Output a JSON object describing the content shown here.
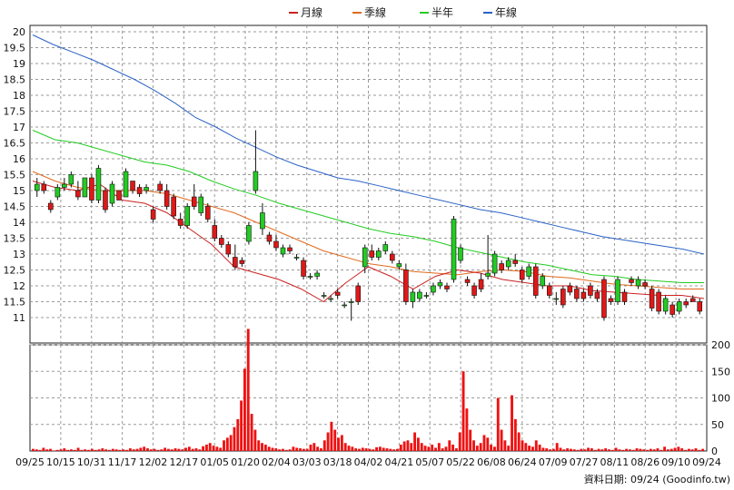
{
  "chart_data": {
    "type": "candlestick",
    "legend": [
      {
        "label": "月線",
        "color": "#cc2222"
      },
      {
        "label": "季線",
        "color": "#e06a1c"
      },
      {
        "label": "半年",
        "color": "#22cc22"
      },
      {
        "label": "年線",
        "color": "#2a62c6"
      }
    ],
    "price_axis": {
      "min": 10.2,
      "max": 20.2,
      "ticks": [
        11,
        11.5,
        12,
        12.5,
        13,
        13.5,
        14,
        14.5,
        15,
        15.5,
        16,
        16.5,
        17,
        17.5,
        18,
        18.5,
        19,
        19.5,
        20
      ]
    },
    "volume_axis": {
      "min": 0,
      "max": 200,
      "ticks": [
        0,
        50,
        100,
        150,
        200
      ]
    },
    "x_labels": [
      "09/25",
      "10/15",
      "10/31",
      "11/17",
      "12/02",
      "12/17",
      "01/05",
      "01/20",
      "02/04",
      "03/03",
      "03/18",
      "04/02",
      "04/21",
      "05/07",
      "05/22",
      "06/08",
      "06/24",
      "07/09",
      "07/27",
      "08/11",
      "08/26",
      "09/10",
      "09/24"
    ],
    "source_text": "資料日期: 09/24 (Goodinfo.tw)",
    "grid": true,
    "ma_year": [
      19.9,
      19.6,
      19.35,
      19.1,
      18.8,
      18.5,
      18.15,
      17.75,
      17.3,
      17.0,
      16.65,
      16.35,
      16.05,
      15.8,
      15.6,
      15.4,
      15.3,
      15.15,
      15.0,
      14.85,
      14.7,
      14.55,
      14.4,
      14.3,
      14.15,
      14.0,
      13.85,
      13.7,
      13.55,
      13.45,
      13.35,
      13.25,
      13.15,
      13.0
    ],
    "ma_half": [
      16.9,
      16.6,
      16.5,
      16.3,
      16.1,
      15.9,
      15.8,
      15.6,
      15.3,
      15.05,
      14.85,
      14.6,
      14.4,
      14.2,
      14.0,
      13.8,
      13.65,
      13.55,
      13.4,
      13.2,
      13.05,
      12.9,
      12.75,
      12.65,
      12.5,
      12.35,
      12.3,
      12.2,
      12.15,
      12.1,
      12.1
    ],
    "ma_quarter": [
      15.6,
      15.3,
      15.1,
      15.0,
      15.0,
      15.0,
      14.9,
      14.7,
      14.5,
      14.3,
      14.0,
      13.7,
      13.4,
      13.1,
      12.9,
      12.7,
      12.6,
      12.45,
      12.4,
      12.35,
      12.45,
      12.5,
      12.45,
      12.3,
      12.25,
      12.15,
      12.05,
      12.0,
      11.95,
      11.9,
      11.9
    ],
    "ma_month": [
      15.3,
      15.1,
      15.0,
      15.2,
      14.7,
      14.6,
      14.3,
      13.8,
      13.3,
      12.6,
      12.4,
      12.2,
      11.9,
      11.5,
      12.1,
      12.6,
      12.3,
      11.9,
      12.3,
      12.5,
      12.4,
      12.2,
      12.1,
      12.0,
      12.0,
      11.85,
      11.8,
      11.75,
      11.7,
      11.7,
      11.6
    ],
    "candles": [
      {
        "o": 15.0,
        "h": 15.4,
        "l": 14.8,
        "c": 15.2
      },
      {
        "o": 15.2,
        "h": 15.3,
        "l": 14.9,
        "c": 15.0
      },
      {
        "o": 14.6,
        "h": 14.7,
        "l": 14.3,
        "c": 14.4
      },
      {
        "o": 14.8,
        "h": 15.2,
        "l": 14.7,
        "c": 15.1
      },
      {
        "o": 15.1,
        "h": 15.4,
        "l": 15.0,
        "c": 15.2
      },
      {
        "o": 15.2,
        "h": 15.6,
        "l": 15.1,
        "c": 15.5
      },
      {
        "o": 15.0,
        "h": 15.3,
        "l": 14.7,
        "c": 14.8
      },
      {
        "o": 14.8,
        "h": 15.4,
        "l": 14.8,
        "c": 15.4
      },
      {
        "o": 15.4,
        "h": 15.5,
        "l": 14.6,
        "c": 14.7
      },
      {
        "o": 14.7,
        "h": 15.8,
        "l": 14.6,
        "c": 15.7
      },
      {
        "o": 15.0,
        "h": 15.1,
        "l": 14.3,
        "c": 14.4
      },
      {
        "o": 14.6,
        "h": 15.3,
        "l": 14.5,
        "c": 15.2
      },
      {
        "o": 15.0,
        "h": 15.0,
        "l": 14.7,
        "c": 14.7
      },
      {
        "o": 14.8,
        "h": 15.7,
        "l": 14.8,
        "c": 15.6
      },
      {
        "o": 15.3,
        "h": 15.3,
        "l": 14.9,
        "c": 15.0
      },
      {
        "o": 15.1,
        "h": 15.2,
        "l": 14.8,
        "c": 14.9
      },
      {
        "o": 15.0,
        "h": 15.2,
        "l": 14.9,
        "c": 15.1
      },
      {
        "o": 14.4,
        "h": 14.5,
        "l": 14.0,
        "c": 14.1
      },
      {
        "o": 15.2,
        "h": 15.3,
        "l": 14.9,
        "c": 15.0
      },
      {
        "o": 15.0,
        "h": 15.2,
        "l": 14.4,
        "c": 14.5
      },
      {
        "o": 14.8,
        "h": 14.9,
        "l": 14.1,
        "c": 14.2
      },
      {
        "o": 14.1,
        "h": 14.3,
        "l": 13.8,
        "c": 13.9
      },
      {
        "o": 13.9,
        "h": 14.6,
        "l": 13.8,
        "c": 14.5
      },
      {
        "o": 14.8,
        "h": 15.2,
        "l": 14.4,
        "c": 14.5
      },
      {
        "o": 14.3,
        "h": 14.9,
        "l": 14.2,
        "c": 14.8
      },
      {
        "o": 14.5,
        "h": 14.6,
        "l": 14.0,
        "c": 14.1
      },
      {
        "o": 13.9,
        "h": 14.1,
        "l": 13.4,
        "c": 13.5
      },
      {
        "o": 13.5,
        "h": 13.6,
        "l": 13.2,
        "c": 13.3
      },
      {
        "o": 13.3,
        "h": 13.4,
        "l": 12.9,
        "c": 13.0
      },
      {
        "o": 12.9,
        "h": 13.3,
        "l": 12.5,
        "c": 12.6
      },
      {
        "o": 12.8,
        "h": 12.9,
        "l": 12.6,
        "c": 12.7
      },
      {
        "o": 13.4,
        "h": 14.0,
        "l": 13.3,
        "c": 13.9
      },
      {
        "o": 15.0,
        "h": 16.9,
        "l": 14.9,
        "c": 15.6
      },
      {
        "o": 13.8,
        "h": 14.6,
        "l": 13.6,
        "c": 14.3
      },
      {
        "o": 13.6,
        "h": 13.7,
        "l": 13.3,
        "c": 13.4
      },
      {
        "o": 13.4,
        "h": 13.6,
        "l": 13.1,
        "c": 13.2
      },
      {
        "o": 13.0,
        "h": 13.3,
        "l": 12.9,
        "c": 13.2
      },
      {
        "o": 13.2,
        "h": 13.3,
        "l": 13.0,
        "c": 13.1
      },
      {
        "o": 12.9,
        "h": 13.0,
        "l": 12.8,
        "c": 12.9
      },
      {
        "o": 12.8,
        "h": 12.9,
        "l": 12.2,
        "c": 12.3
      },
      {
        "o": 12.3,
        "h": 12.4,
        "l": 12.2,
        "c": 12.3
      },
      {
        "o": 12.3,
        "h": 12.5,
        "l": 12.2,
        "c": 12.4
      },
      {
        "o": 11.7,
        "h": 11.8,
        "l": 11.6,
        "c": 11.7
      },
      {
        "o": 11.6,
        "h": 11.7,
        "l": 11.5,
        "c": 11.6
      },
      {
        "o": 11.8,
        "h": 11.9,
        "l": 11.6,
        "c": 11.7
      },
      {
        "o": 11.4,
        "h": 11.5,
        "l": 11.3,
        "c": 11.4
      },
      {
        "o": 11.5,
        "h": 11.6,
        "l": 10.9,
        "c": 11.5
      },
      {
        "o": 12.0,
        "h": 12.1,
        "l": 11.4,
        "c": 11.5
      },
      {
        "o": 12.6,
        "h": 13.3,
        "l": 12.4,
        "c": 13.2
      },
      {
        "o": 13.1,
        "h": 13.3,
        "l": 12.8,
        "c": 12.9
      },
      {
        "o": 12.9,
        "h": 13.2,
        "l": 12.8,
        "c": 13.1
      },
      {
        "o": 13.1,
        "h": 13.4,
        "l": 13.0,
        "c": 13.3
      },
      {
        "o": 13.0,
        "h": 13.1,
        "l": 12.7,
        "c": 12.8
      },
      {
        "o": 12.6,
        "h": 12.8,
        "l": 12.5,
        "c": 12.7
      },
      {
        "o": 12.5,
        "h": 12.7,
        "l": 11.4,
        "c": 11.5
      },
      {
        "o": 11.5,
        "h": 11.9,
        "l": 11.3,
        "c": 11.8
      },
      {
        "o": 11.6,
        "h": 11.9,
        "l": 11.5,
        "c": 11.8
      },
      {
        "o": 11.7,
        "h": 11.8,
        "l": 11.6,
        "c": 11.7
      },
      {
        "o": 11.8,
        "h": 12.1,
        "l": 11.7,
        "c": 12.0
      },
      {
        "o": 12.0,
        "h": 12.2,
        "l": 11.9,
        "c": 12.1
      },
      {
        "o": 12.0,
        "h": 12.1,
        "l": 11.8,
        "c": 11.9
      },
      {
        "o": 12.2,
        "h": 14.2,
        "l": 12.1,
        "c": 14.1
      },
      {
        "o": 12.8,
        "h": 13.3,
        "l": 12.7,
        "c": 13.2
      },
      {
        "o": 12.2,
        "h": 12.3,
        "l": 12.0,
        "c": 12.1
      },
      {
        "o": 12.0,
        "h": 12.1,
        "l": 11.6,
        "c": 11.7
      },
      {
        "o": 12.2,
        "h": 12.4,
        "l": 11.8,
        "c": 11.9
      },
      {
        "o": 12.3,
        "h": 13.6,
        "l": 12.2,
        "c": 12.4
      },
      {
        "o": 12.4,
        "h": 13.1,
        "l": 12.3,
        "c": 13.0
      },
      {
        "o": 12.7,
        "h": 12.8,
        "l": 12.4,
        "c": 12.5
      },
      {
        "o": 12.6,
        "h": 12.9,
        "l": 12.5,
        "c": 12.8
      },
      {
        "o": 12.8,
        "h": 13.0,
        "l": 12.6,
        "c": 12.7
      },
      {
        "o": 12.5,
        "h": 12.6,
        "l": 12.1,
        "c": 12.2
      },
      {
        "o": 12.3,
        "h": 12.7,
        "l": 12.2,
        "c": 12.6
      },
      {
        "o": 12.6,
        "h": 12.7,
        "l": 11.6,
        "c": 11.7
      },
      {
        "o": 12.0,
        "h": 12.4,
        "l": 11.9,
        "c": 12.3
      },
      {
        "o": 12.0,
        "h": 12.1,
        "l": 11.6,
        "c": 11.7
      },
      {
        "o": 11.6,
        "h": 11.8,
        "l": 11.4,
        "c": 11.6
      },
      {
        "o": 11.9,
        "h": 12.0,
        "l": 11.3,
        "c": 11.4
      },
      {
        "o": 12.0,
        "h": 12.1,
        "l": 11.7,
        "c": 11.8
      },
      {
        "o": 11.9,
        "h": 12.0,
        "l": 11.5,
        "c": 11.6
      },
      {
        "o": 11.8,
        "h": 11.9,
        "l": 11.5,
        "c": 11.6
      },
      {
        "o": 12.0,
        "h": 12.1,
        "l": 11.6,
        "c": 11.7
      },
      {
        "o": 11.8,
        "h": 11.9,
        "l": 11.5,
        "c": 11.6
      },
      {
        "o": 12.2,
        "h": 12.3,
        "l": 10.9,
        "c": 11.0
      },
      {
        "o": 11.6,
        "h": 11.7,
        "l": 11.4,
        "c": 11.5
      },
      {
        "o": 11.5,
        "h": 12.3,
        "l": 11.4,
        "c": 12.2
      },
      {
        "o": 11.8,
        "h": 11.9,
        "l": 11.4,
        "c": 11.5
      },
      {
        "o": 12.2,
        "h": 12.3,
        "l": 12.0,
        "c": 12.1
      },
      {
        "o": 12.0,
        "h": 12.3,
        "l": 11.9,
        "c": 12.2
      },
      {
        "o": 12.1,
        "h": 12.2,
        "l": 11.9,
        "c": 12.0
      },
      {
        "o": 11.9,
        "h": 12.0,
        "l": 11.2,
        "c": 11.3
      },
      {
        "o": 11.8,
        "h": 11.9,
        "l": 11.1,
        "c": 11.2
      },
      {
        "o": 11.2,
        "h": 11.7,
        "l": 11.1,
        "c": 11.6
      },
      {
        "o": 11.4,
        "h": 11.5,
        "l": 11.0,
        "c": 11.1
      },
      {
        "o": 11.2,
        "h": 11.6,
        "l": 11.1,
        "c": 11.5
      },
      {
        "o": 11.5,
        "h": 11.6,
        "l": 11.3,
        "c": 11.4
      },
      {
        "o": 11.6,
        "h": 11.7,
        "l": 11.5,
        "c": 11.5
      },
      {
        "o": 11.5,
        "h": 11.6,
        "l": 11.1,
        "c": 11.2
      }
    ],
    "volumes": [
      4,
      3,
      2,
      6,
      3,
      4,
      1,
      2,
      3,
      5,
      2,
      3,
      2,
      6,
      2,
      3,
      2,
      4,
      2,
      3,
      5,
      3,
      2,
      4,
      3,
      2,
      3,
      2,
      5,
      3,
      4,
      6,
      8,
      5,
      3,
      4,
      2,
      3,
      6,
      4,
      3,
      5,
      4,
      3,
      6,
      8,
      4,
      5,
      3,
      9,
      12,
      15,
      10,
      8,
      6,
      20,
      25,
      30,
      45,
      60,
      95,
      155,
      230,
      70,
      40,
      20,
      15,
      12,
      8,
      6,
      5,
      3,
      4,
      2,
      3,
      8,
      6,
      5,
      4,
      4,
      12,
      15,
      8,
      5,
      20,
      35,
      55,
      40,
      25,
      30,
      15,
      10,
      8,
      5,
      4,
      6,
      5,
      4,
      3,
      7,
      8,
      6,
      5,
      4,
      3,
      4,
      12,
      18,
      20,
      15,
      35,
      25,
      15,
      10,
      8,
      12,
      6,
      15,
      5,
      8,
      20,
      12,
      5,
      35,
      150,
      80,
      40,
      20,
      10,
      15,
      30,
      25,
      12,
      8,
      100,
      40,
      20,
      10,
      105,
      60,
      35,
      20,
      15,
      10,
      8,
      20,
      12,
      6,
      5,
      3,
      4,
      15,
      6,
      3,
      5,
      4,
      3,
      2,
      4,
      3,
      6,
      5,
      2,
      4,
      3,
      5,
      3,
      2,
      6,
      3,
      2,
      4,
      3,
      2,
      5,
      4,
      3,
      2,
      4,
      3,
      5,
      2,
      8,
      3,
      4,
      6,
      8,
      5,
      2,
      4,
      3,
      5,
      2,
      4
    ]
  }
}
